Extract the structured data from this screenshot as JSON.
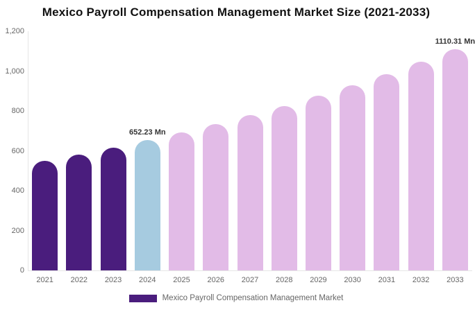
{
  "title": "Mexico Payroll Compensation Management Market Size (2021-2033)",
  "legend": {
    "label": "Mexico Payroll Compensation Management Market",
    "swatch_color": "#4a1d7d"
  },
  "colors": {
    "historical": "#4a1d7d",
    "current": "#a6cbe0",
    "forecast": "#e2bbe7",
    "axis_line": "#e6e6e6",
    "tick_text": "#666666",
    "data_label_text": "#333333"
  },
  "chart_data": {
    "type": "bar",
    "title": "Mexico Payroll Compensation Management Market Size (2021-2033)",
    "unit": "Mn",
    "categories": [
      "2021",
      "2022",
      "2023",
      "2024",
      "2025",
      "2026",
      "2027",
      "2028",
      "2029",
      "2030",
      "2031",
      "2032",
      "2033"
    ],
    "values": [
      549,
      581,
      615,
      652.23,
      692,
      734,
      779,
      826,
      876,
      930,
      986,
      1047,
      1110.31
    ],
    "bar_color_keys": [
      "historical",
      "historical",
      "historical",
      "current",
      "forecast",
      "forecast",
      "forecast",
      "forecast",
      "forecast",
      "forecast",
      "forecast",
      "forecast",
      "forecast"
    ],
    "data_labels": [
      {
        "index": 3,
        "text": "652.23 Mn"
      },
      {
        "index": 12,
        "text": "1110.31 Mn"
      }
    ],
    "ylim": [
      0,
      1200
    ],
    "yticks": [
      {
        "value": 0,
        "label": "0"
      },
      {
        "value": 200,
        "label": "200"
      },
      {
        "value": 400,
        "label": "400"
      },
      {
        "value": 600,
        "label": "600"
      },
      {
        "value": 800,
        "label": "800"
      },
      {
        "value": 1000,
        "label": "1,000"
      },
      {
        "value": 1200,
        "label": "1,200"
      }
    ],
    "grid": false,
    "legend_position": "bottom",
    "series_name": "Mexico Payroll Compensation Management Market"
  }
}
